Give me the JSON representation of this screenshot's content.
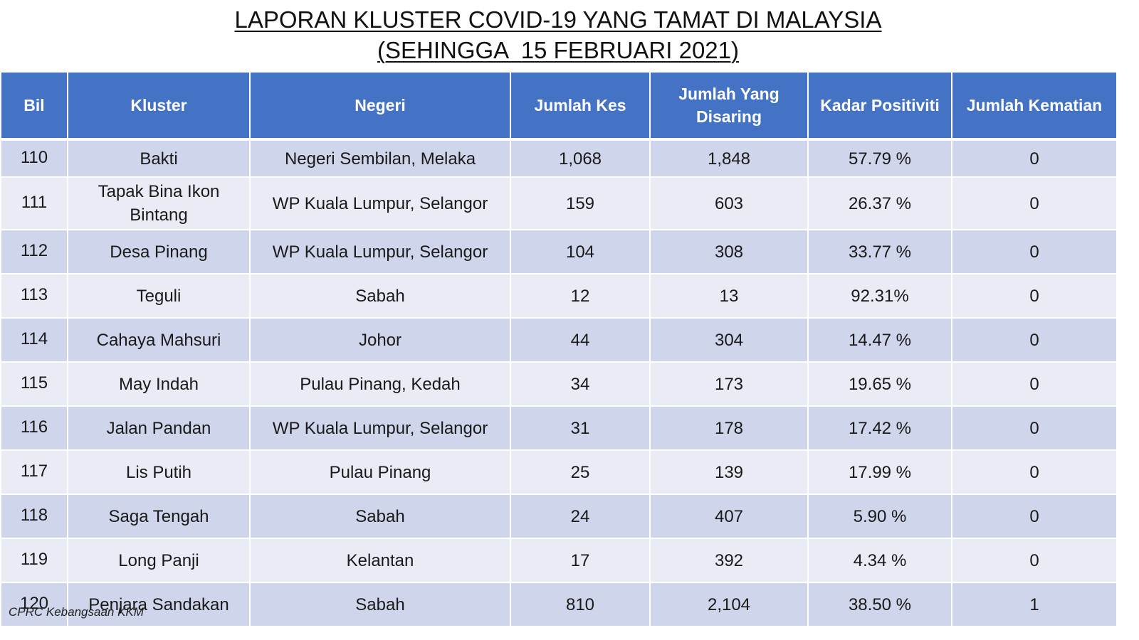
{
  "title": {
    "line1": "LAPORAN KLUSTER COVID-19 YANG TAMAT DI MALAYSIA",
    "line2": "(SEHINGGA  15 FEBRUARI 2021)"
  },
  "table": {
    "headers": {
      "bil": "Bil",
      "kluster": "Kluster",
      "negeri": "Negeri",
      "jumlah_kes": "Jumlah Kes",
      "jumlah_disaring": "Jumlah Yang Disaring",
      "kadar_positiviti": "Kadar Positiviti",
      "jumlah_kematian": "Jumlah Kematian"
    },
    "rows": [
      {
        "bil": "110",
        "kluster": "Bakti",
        "negeri": "Negeri Sembilan, Melaka",
        "kes": "1,068",
        "disaring": "1,848",
        "positiviti": "57.79 %",
        "kematian": "0"
      },
      {
        "bil": "111",
        "kluster": "Tapak Bina Ikon Bintang",
        "negeri": "WP Kuala Lumpur, Selangor",
        "kes": "159",
        "disaring": "603",
        "positiviti": "26.37 %",
        "kematian": "0"
      },
      {
        "bil": "112",
        "kluster": "Desa Pinang",
        "negeri": "WP Kuala Lumpur, Selangor",
        "kes": "104",
        "disaring": "308",
        "positiviti": "33.77 %",
        "kematian": "0"
      },
      {
        "bil": "113",
        "kluster": "Teguli",
        "negeri": "Sabah",
        "kes": "12",
        "disaring": "13",
        "positiviti": "92.31%",
        "kematian": "0"
      },
      {
        "bil": "114",
        "kluster": "Cahaya Mahsuri",
        "negeri": "Johor",
        "kes": "44",
        "disaring": "304",
        "positiviti": "14.47 %",
        "kematian": "0"
      },
      {
        "bil": "115",
        "kluster": "May Indah",
        "negeri": "Pulau Pinang, Kedah",
        "kes": "34",
        "disaring": "173",
        "positiviti": "19.65 %",
        "kematian": "0"
      },
      {
        "bil": "116",
        "kluster": "Jalan Pandan",
        "negeri": "WP Kuala Lumpur, Selangor",
        "kes": "31",
        "disaring": "178",
        "positiviti": "17.42 %",
        "kematian": "0"
      },
      {
        "bil": "117",
        "kluster": "Lis Putih",
        "negeri": "Pulau Pinang",
        "kes": "25",
        "disaring": "139",
        "positiviti": "17.99 %",
        "kematian": "0"
      },
      {
        "bil": "118",
        "kluster": "Saga Tengah",
        "negeri": "Sabah",
        "kes": "24",
        "disaring": "407",
        "positiviti": "5.90 %",
        "kematian": "0"
      },
      {
        "bil": "119",
        "kluster": "Long Panji",
        "negeri": "Kelantan",
        "kes": "17",
        "disaring": "392",
        "positiviti": "4.34 %",
        "kematian": "0"
      },
      {
        "bil": "120",
        "kluster": "Penjara Sandakan",
        "negeri": "Sabah",
        "kes": "810",
        "disaring": "2,104",
        "positiviti": "38.50 %",
        "kematian": "1"
      }
    ]
  },
  "footer": {
    "source": "CPRC Kebangsaan KKM"
  },
  "colors": {
    "header_bg": "#4472c4",
    "row_odd": "#cfd5ea",
    "row_even": "#e9ebf5"
  }
}
